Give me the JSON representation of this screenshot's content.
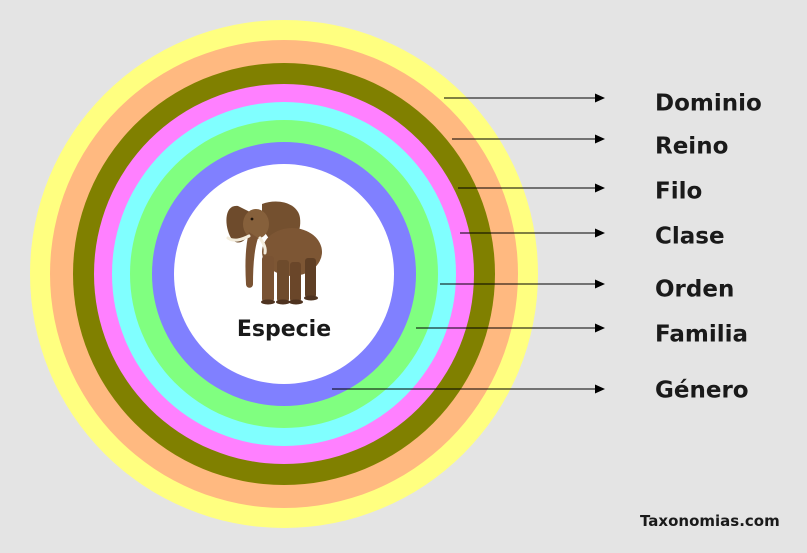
{
  "diagram": {
    "rings": [
      {
        "name": "dominio",
        "color": "#ffff80"
      },
      {
        "name": "reino",
        "color": "#ffb980"
      },
      {
        "name": "filo",
        "color": "#808000"
      },
      {
        "name": "clase",
        "color": "#ff80ff"
      },
      {
        "name": "orden",
        "color": "#80ffff"
      },
      {
        "name": "familia",
        "color": "#80ff80"
      },
      {
        "name": "genero",
        "color": "#8080ff"
      },
      {
        "name": "especie",
        "color": "#ffffff"
      }
    ],
    "levels": [
      {
        "label": "Dominio"
      },
      {
        "label": "Reino"
      },
      {
        "label": "Filo"
      },
      {
        "label": "Clase"
      },
      {
        "label": "Orden"
      },
      {
        "label": "Familia"
      },
      {
        "label": "Género"
      }
    ],
    "center_label": "Especie",
    "center_image": "elephant-image",
    "arrow_color": "#000000"
  },
  "watermark": "Taxonomias.com"
}
